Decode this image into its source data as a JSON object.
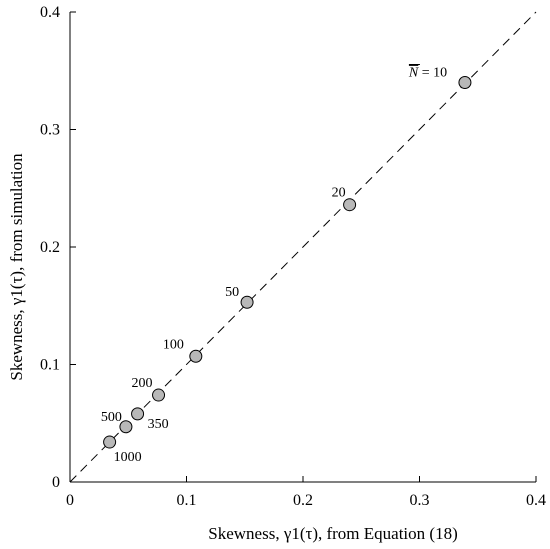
{
  "chart_data": {
    "type": "scatter",
    "xlabel": "Skewness, γ1(τ), from Equation (18)",
    "ylabel": "Skewness, γ1(τ), from simulation",
    "xlim": [
      0,
      0.4
    ],
    "ylim": [
      0,
      0.4
    ],
    "x_ticks": [
      "0",
      "0.1",
      "0.2",
      "0.3",
      "0.4"
    ],
    "y_ticks": [
      "0",
      "0.1",
      "0.2",
      "0.3",
      "0.4"
    ],
    "reference_line": "y = x (dashed)",
    "points": [
      {
        "x": 0.339,
        "y": 0.34,
        "label": "= 10",
        "label_symbol": "N",
        "overlined": true
      },
      {
        "x": 0.24,
        "y": 0.236,
        "label": "20"
      },
      {
        "x": 0.152,
        "y": 0.153,
        "label": "50"
      },
      {
        "x": 0.108,
        "y": 0.107,
        "label": "100"
      },
      {
        "x": 0.076,
        "y": 0.074,
        "label": "200"
      },
      {
        "x": 0.058,
        "y": 0.058,
        "label": "350"
      },
      {
        "x": 0.048,
        "y": 0.047,
        "label": "500"
      },
      {
        "x": 0.034,
        "y": 0.034,
        "label": "1000"
      }
    ],
    "grid": false,
    "marker_color": "#b8b8b8"
  }
}
